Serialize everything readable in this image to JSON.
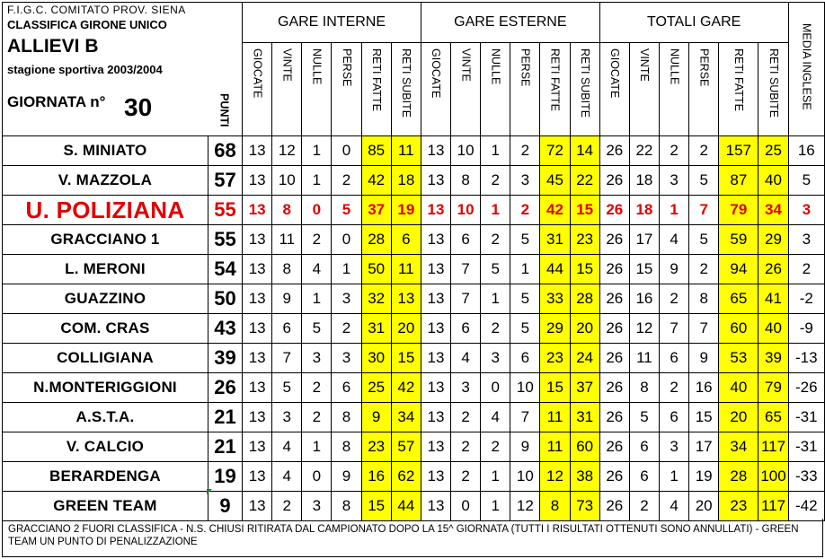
{
  "header": {
    "org": "F.I.G.C. COMITATO  PROV. SIENA",
    "classifica": "CLASSIFICA GIRONE UNICO",
    "category": "ALLIEVI B",
    "season": "stagione sportiva 2003/2004",
    "round_label": "GIORNATA n°",
    "round_number": "30",
    "points_label": "PUNTI"
  },
  "groups": {
    "home": "GARE INTERNE",
    "away": "GARE ESTERNE",
    "total": "TOTALI GARE",
    "media": "MEDIA INGLESE"
  },
  "columns": [
    "GIOCATE",
    "VINTE",
    "NULLE",
    "PERSE",
    "RETI FATTE",
    "RETI SUBITE"
  ],
  "highlight_color": "#e00000",
  "goals_column_color": "#ffff00",
  "rows": [
    {
      "team": "S. MINIATO",
      "pts": "68",
      "home": [
        "13",
        "12",
        "1",
        "0",
        "85",
        "11"
      ],
      "away": [
        "13",
        "10",
        "1",
        "2",
        "72",
        "14"
      ],
      "total": [
        "26",
        "22",
        "2",
        "2",
        "157",
        "25"
      ],
      "media": "16"
    },
    {
      "team": "V. MAZZOLA",
      "pts": "57",
      "home": [
        "13",
        "10",
        "1",
        "2",
        "42",
        "18"
      ],
      "away": [
        "13",
        "8",
        "2",
        "3",
        "45",
        "22"
      ],
      "total": [
        "26",
        "18",
        "3",
        "5",
        "87",
        "40"
      ],
      "media": "5"
    },
    {
      "team": "U. POLIZIANA",
      "pts": "55",
      "home": [
        "13",
        "8",
        "0",
        "5",
        "37",
        "19"
      ],
      "away": [
        "13",
        "10",
        "1",
        "2",
        "42",
        "15"
      ],
      "total": [
        "26",
        "18",
        "1",
        "7",
        "79",
        "34"
      ],
      "media": "3"
    },
    {
      "team": "GRACCIANO 1",
      "pts": "55",
      "home": [
        "13",
        "11",
        "2",
        "0",
        "28",
        "6"
      ],
      "away": [
        "13",
        "6",
        "2",
        "5",
        "31",
        "23"
      ],
      "total": [
        "26",
        "17",
        "4",
        "5",
        "59",
        "29"
      ],
      "media": "3"
    },
    {
      "team": "L. MERONI",
      "pts": "54",
      "home": [
        "13",
        "8",
        "4",
        "1",
        "50",
        "11"
      ],
      "away": [
        "13",
        "7",
        "5",
        "1",
        "44",
        "15"
      ],
      "total": [
        "26",
        "15",
        "9",
        "2",
        "94",
        "26"
      ],
      "media": "2"
    },
    {
      "team": "GUAZZINO",
      "pts": "50",
      "home": [
        "13",
        "9",
        "1",
        "3",
        "32",
        "13"
      ],
      "away": [
        "13",
        "7",
        "1",
        "5",
        "33",
        "28"
      ],
      "total": [
        "26",
        "16",
        "2",
        "8",
        "65",
        "41"
      ],
      "media": "-2"
    },
    {
      "team": "COM. CRAS",
      "pts": "43",
      "home": [
        "13",
        "6",
        "5",
        "2",
        "31",
        "20"
      ],
      "away": [
        "13",
        "6",
        "2",
        "5",
        "29",
        "20"
      ],
      "total": [
        "26",
        "12",
        "7",
        "7",
        "60",
        "40"
      ],
      "media": "-9"
    },
    {
      "team": "COLLIGIANA",
      "pts": "39",
      "home": [
        "13",
        "7",
        "3",
        "3",
        "30",
        "15"
      ],
      "away": [
        "13",
        "4",
        "3",
        "6",
        "23",
        "24"
      ],
      "total": [
        "26",
        "11",
        "6",
        "9",
        "53",
        "39"
      ],
      "media": "-13"
    },
    {
      "team": "N.MONTERIGGIONI",
      "pts": "26",
      "home": [
        "13",
        "5",
        "2",
        "6",
        "25",
        "42"
      ],
      "away": [
        "13",
        "3",
        "0",
        "10",
        "15",
        "37"
      ],
      "total": [
        "26",
        "8",
        "2",
        "16",
        "40",
        "79"
      ],
      "media": "-26"
    },
    {
      "team": "A.S.T.A.",
      "pts": "21",
      "home": [
        "13",
        "3",
        "2",
        "8",
        "9",
        "34"
      ],
      "away": [
        "13",
        "2",
        "4",
        "7",
        "11",
        "31"
      ],
      "total": [
        "26",
        "5",
        "6",
        "15",
        "20",
        "65"
      ],
      "media": "-31"
    },
    {
      "team": "V. CALCIO",
      "pts": "21",
      "home": [
        "13",
        "4",
        "1",
        "8",
        "23",
        "57"
      ],
      "away": [
        "13",
        "2",
        "2",
        "9",
        "11",
        "60"
      ],
      "total": [
        "26",
        "6",
        "3",
        "17",
        "34",
        "117"
      ],
      "media": "-31"
    },
    {
      "team": "BERARDENGA",
      "pts": "19",
      "home": [
        "13",
        "4",
        "0",
        "9",
        "16",
        "62"
      ],
      "away": [
        "13",
        "2",
        "1",
        "10",
        "12",
        "38"
      ],
      "total": [
        "26",
        "6",
        "1",
        "19",
        "28",
        "100"
      ],
      "media": "-33"
    },
    {
      "team": "GREEN TEAM",
      "pts": "9",
      "home": [
        "13",
        "2",
        "3",
        "8",
        "15",
        "44"
      ],
      "away": [
        "13",
        "0",
        "1",
        "12",
        "8",
        "73"
      ],
      "total": [
        "26",
        "2",
        "4",
        "20",
        "23",
        "117"
      ],
      "media": "-42"
    }
  ],
  "highlighted_team_index": 2,
  "footnote": "GRACCIANO 2 FUORI CLASSIFICA  - N.S. CHIUSI RITIRATA  DAL CAMPIONATO  DOPO LA 15^ GIORNATA  (TUTTI  I RISULTATI  OTTENUTI  SONO ANNULLATI)  - GREEN TEAM UN PUNTO  DI PENALIZZAZIONE"
}
